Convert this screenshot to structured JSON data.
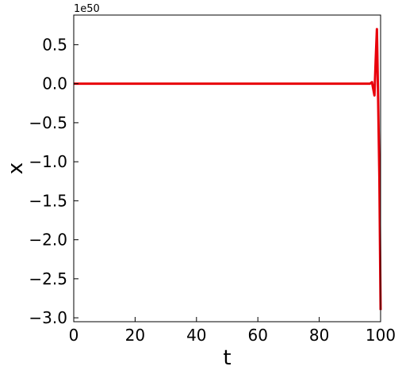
{
  "chart_data": {
    "type": "line",
    "title": "",
    "xlabel": "t",
    "ylabel": "x",
    "y_offset_label": "1e50",
    "xlim": [
      0,
      100
    ],
    "ylim": [
      -3.05,
      0.88
    ],
    "xticks": [
      0,
      20,
      40,
      60,
      80,
      100
    ],
    "xtick_labels": [
      "0",
      "20",
      "40",
      "60",
      "80",
      "100"
    ],
    "yticks": [
      0.5,
      0.0,
      -0.5,
      -1.0,
      -1.5,
      -2.0,
      -2.5,
      -3.0
    ],
    "ytick_labels": [
      "0.5",
      "0.0",
      "−0.5",
      "−1.0",
      "−1.5",
      "−2.0",
      "−2.5",
      "−3.0"
    ],
    "grid": false,
    "series": [
      {
        "color": "#e8000b",
        "x": [
          0,
          10,
          20,
          30,
          40,
          50,
          60,
          70,
          80,
          90,
          96.5,
          97.2,
          98.0,
          98.4,
          98.8,
          99.2,
          99.6,
          100
        ],
        "y": [
          0,
          0,
          0,
          0,
          0,
          0,
          0,
          0,
          0,
          0,
          0.0,
          0.02,
          -0.15,
          0.3,
          0.7,
          -0.2,
          -1.2,
          -2.9
        ]
      }
    ],
    "overlay_line": {
      "color": "#e0a000",
      "y": 0
    }
  }
}
